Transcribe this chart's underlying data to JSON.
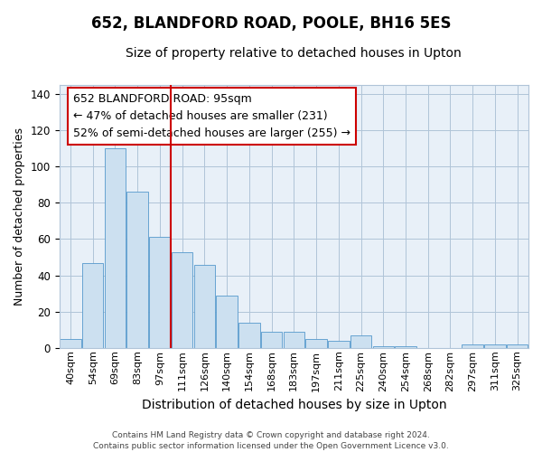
{
  "title": "652, BLANDFORD ROAD, POOLE, BH16 5ES",
  "subtitle": "Size of property relative to detached houses in Upton",
  "xlabel": "Distribution of detached houses by size in Upton",
  "ylabel": "Number of detached properties",
  "categories": [
    "40sqm",
    "54sqm",
    "69sqm",
    "83sqm",
    "97sqm",
    "111sqm",
    "126sqm",
    "140sqm",
    "154sqm",
    "168sqm",
    "183sqm",
    "197sqm",
    "211sqm",
    "225sqm",
    "240sqm",
    "254sqm",
    "268sqm",
    "282sqm",
    "297sqm",
    "311sqm",
    "325sqm"
  ],
  "values": [
    5,
    47,
    110,
    86,
    61,
    53,
    46,
    29,
    14,
    9,
    9,
    5,
    4,
    7,
    1,
    1,
    0,
    0,
    2,
    2,
    2
  ],
  "bar_color": "#cce0f0",
  "bar_edge_color": "#5599cc",
  "vline_x": 4.5,
  "vline_color": "#cc0000",
  "annotation_lines": [
    "652 BLANDFORD ROAD: 95sqm",
    "← 47% of detached houses are smaller (231)",
    "52% of semi-detached houses are larger (255) →"
  ],
  "ylim": [
    0,
    145
  ],
  "yticks": [
    0,
    20,
    40,
    60,
    80,
    100,
    120,
    140
  ],
  "background_color": "#ffffff",
  "plot_bg_color": "#e8f0f8",
  "grid_color": "#b0c4d8",
  "footer": "Contains HM Land Registry data © Crown copyright and database right 2024.\nContains public sector information licensed under the Open Government Licence v3.0.",
  "title_fontsize": 12,
  "subtitle_fontsize": 10,
  "ylabel_fontsize": 9,
  "xlabel_fontsize": 10,
  "annotation_fontsize": 9
}
